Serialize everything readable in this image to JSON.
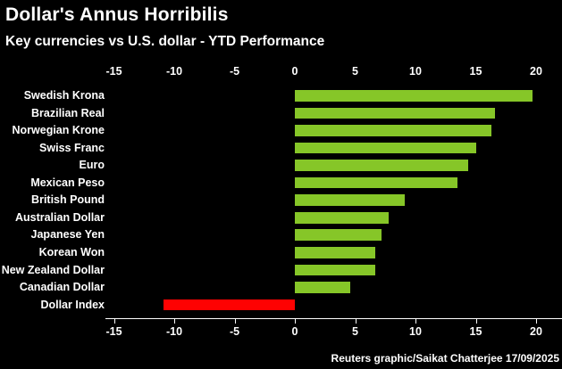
{
  "header": {
    "title": "Dollar's Annus Horribilis",
    "subtitle": "Key currencies vs U.S. dollar - YTD Performance"
  },
  "footer": {
    "credit": "Reuters graphic/Saikat Chatterjee 17/09/2025"
  },
  "chart_data": {
    "type": "bar",
    "orientation": "horizontal",
    "title": "Dollar's Annus Horribilis",
    "subtitle": "Key currencies vs U.S. dollar - YTD Performance",
    "categories": [
      "Swedish Krona",
      "Brazilian Real",
      "Norwegian Krone",
      "Swiss Franc",
      "Euro",
      "Mexican Peso",
      "British Pound",
      "Australian Dollar",
      "Japanese Yen",
      "Korean Won",
      "New Zealand Dollar",
      "Canadian Dollar",
      "Dollar Index"
    ],
    "values": [
      19.7,
      16.6,
      16.3,
      15.0,
      14.4,
      13.5,
      9.1,
      7.8,
      7.2,
      6.7,
      6.7,
      4.6,
      -10.9
    ],
    "xlabel": "",
    "ylabel": "",
    "axis_ticks": [
      -15,
      -10,
      -5,
      0,
      5,
      10,
      15,
      20
    ],
    "xlim": [
      -15.7,
      22.2
    ],
    "axis_positions": "labels on top (no line) and bottom (line with tick marks)",
    "grid": false,
    "legend": "none",
    "colors": {
      "positive": "#86c628",
      "negative": "#fe0202",
      "background": "#000000",
      "text": "#ffffff",
      "axis": "#ffffff"
    }
  }
}
